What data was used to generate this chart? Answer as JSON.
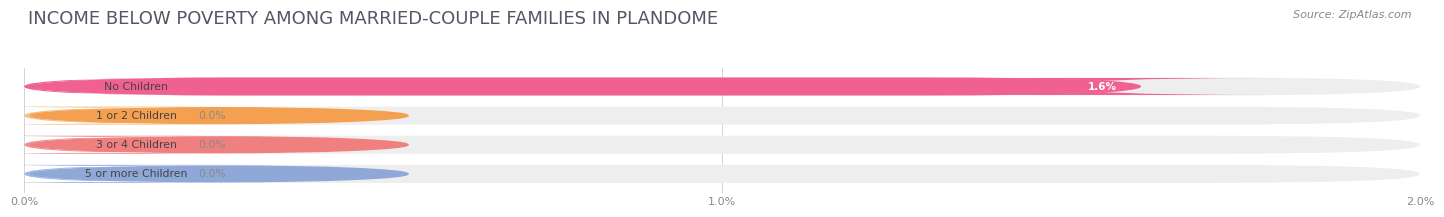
{
  "title": "INCOME BELOW POVERTY AMONG MARRIED-COUPLE FAMILIES IN PLANDOME",
  "source": "Source: ZipAtlas.com",
  "categories": [
    "No Children",
    "1 or 2 Children",
    "3 or 4 Children",
    "5 or more Children"
  ],
  "values": [
    1.6,
    0.0,
    0.0,
    0.0
  ],
  "bar_colors": [
    "#f06090",
    "#f5c080",
    "#f09090",
    "#a0b8e8"
  ],
  "circle_colors": [
    "#f06090",
    "#f5a050",
    "#f08080",
    "#90a8d8"
  ],
  "background_color": "#ffffff",
  "bar_bg_color": "#eeeeee",
  "xlim": [
    0,
    2.0
  ],
  "xticks": [
    0.0,
    1.0,
    2.0
  ],
  "xtick_labels": [
    "0.0%",
    "1.0%",
    "2.0%"
  ],
  "title_fontsize": 13,
  "source_fontsize": 8,
  "bar_height": 0.62,
  "value_inside_color": "#ffffff",
  "value_outside_color": "#888888"
}
